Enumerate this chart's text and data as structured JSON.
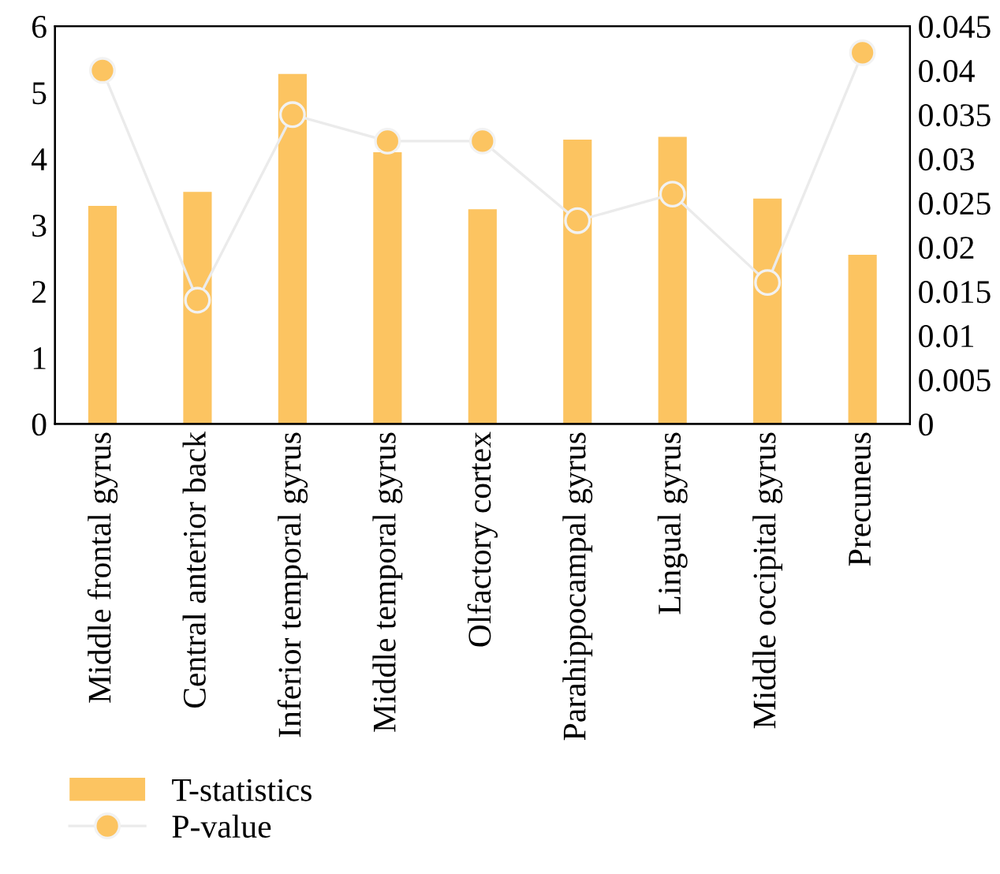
{
  "chart_data": {
    "type": "bar",
    "categories": [
      "Middle frontal gyrus",
      "Central anterior back",
      "Inferior temporal gyrus",
      "Middle temporal gyrus",
      "Olfactory cortex",
      "Parahippocampal gyrus",
      "Lingual gyrus",
      "Middle occipital gyrus",
      "Precuneus"
    ],
    "series": [
      {
        "name": "T-statistics",
        "color": "#fcc461",
        "values": [
          3.29,
          3.5,
          5.28,
          4.1,
          3.24,
          4.29,
          4.33,
          3.4,
          2.55
        ]
      },
      {
        "name": "P-value",
        "type": "line",
        "axis": "y2",
        "color": "#fcc461",
        "marker": "circle",
        "values": [
          0.04,
          0.014,
          0.035,
          0.032,
          0.032,
          0.023,
          0.026,
          0.016,
          0.042
        ]
      }
    ],
    "ylim": [
      0,
      6
    ],
    "yticks": [
      0,
      1,
      2,
      3,
      4,
      5,
      6
    ],
    "y2lim": [
      0,
      0.045
    ],
    "y2ticks": [
      0,
      0.005,
      0.01,
      0.015,
      0.02,
      0.025,
      0.03,
      0.035,
      0.04,
      0.045
    ],
    "grid": false,
    "legend": "bottom left"
  }
}
